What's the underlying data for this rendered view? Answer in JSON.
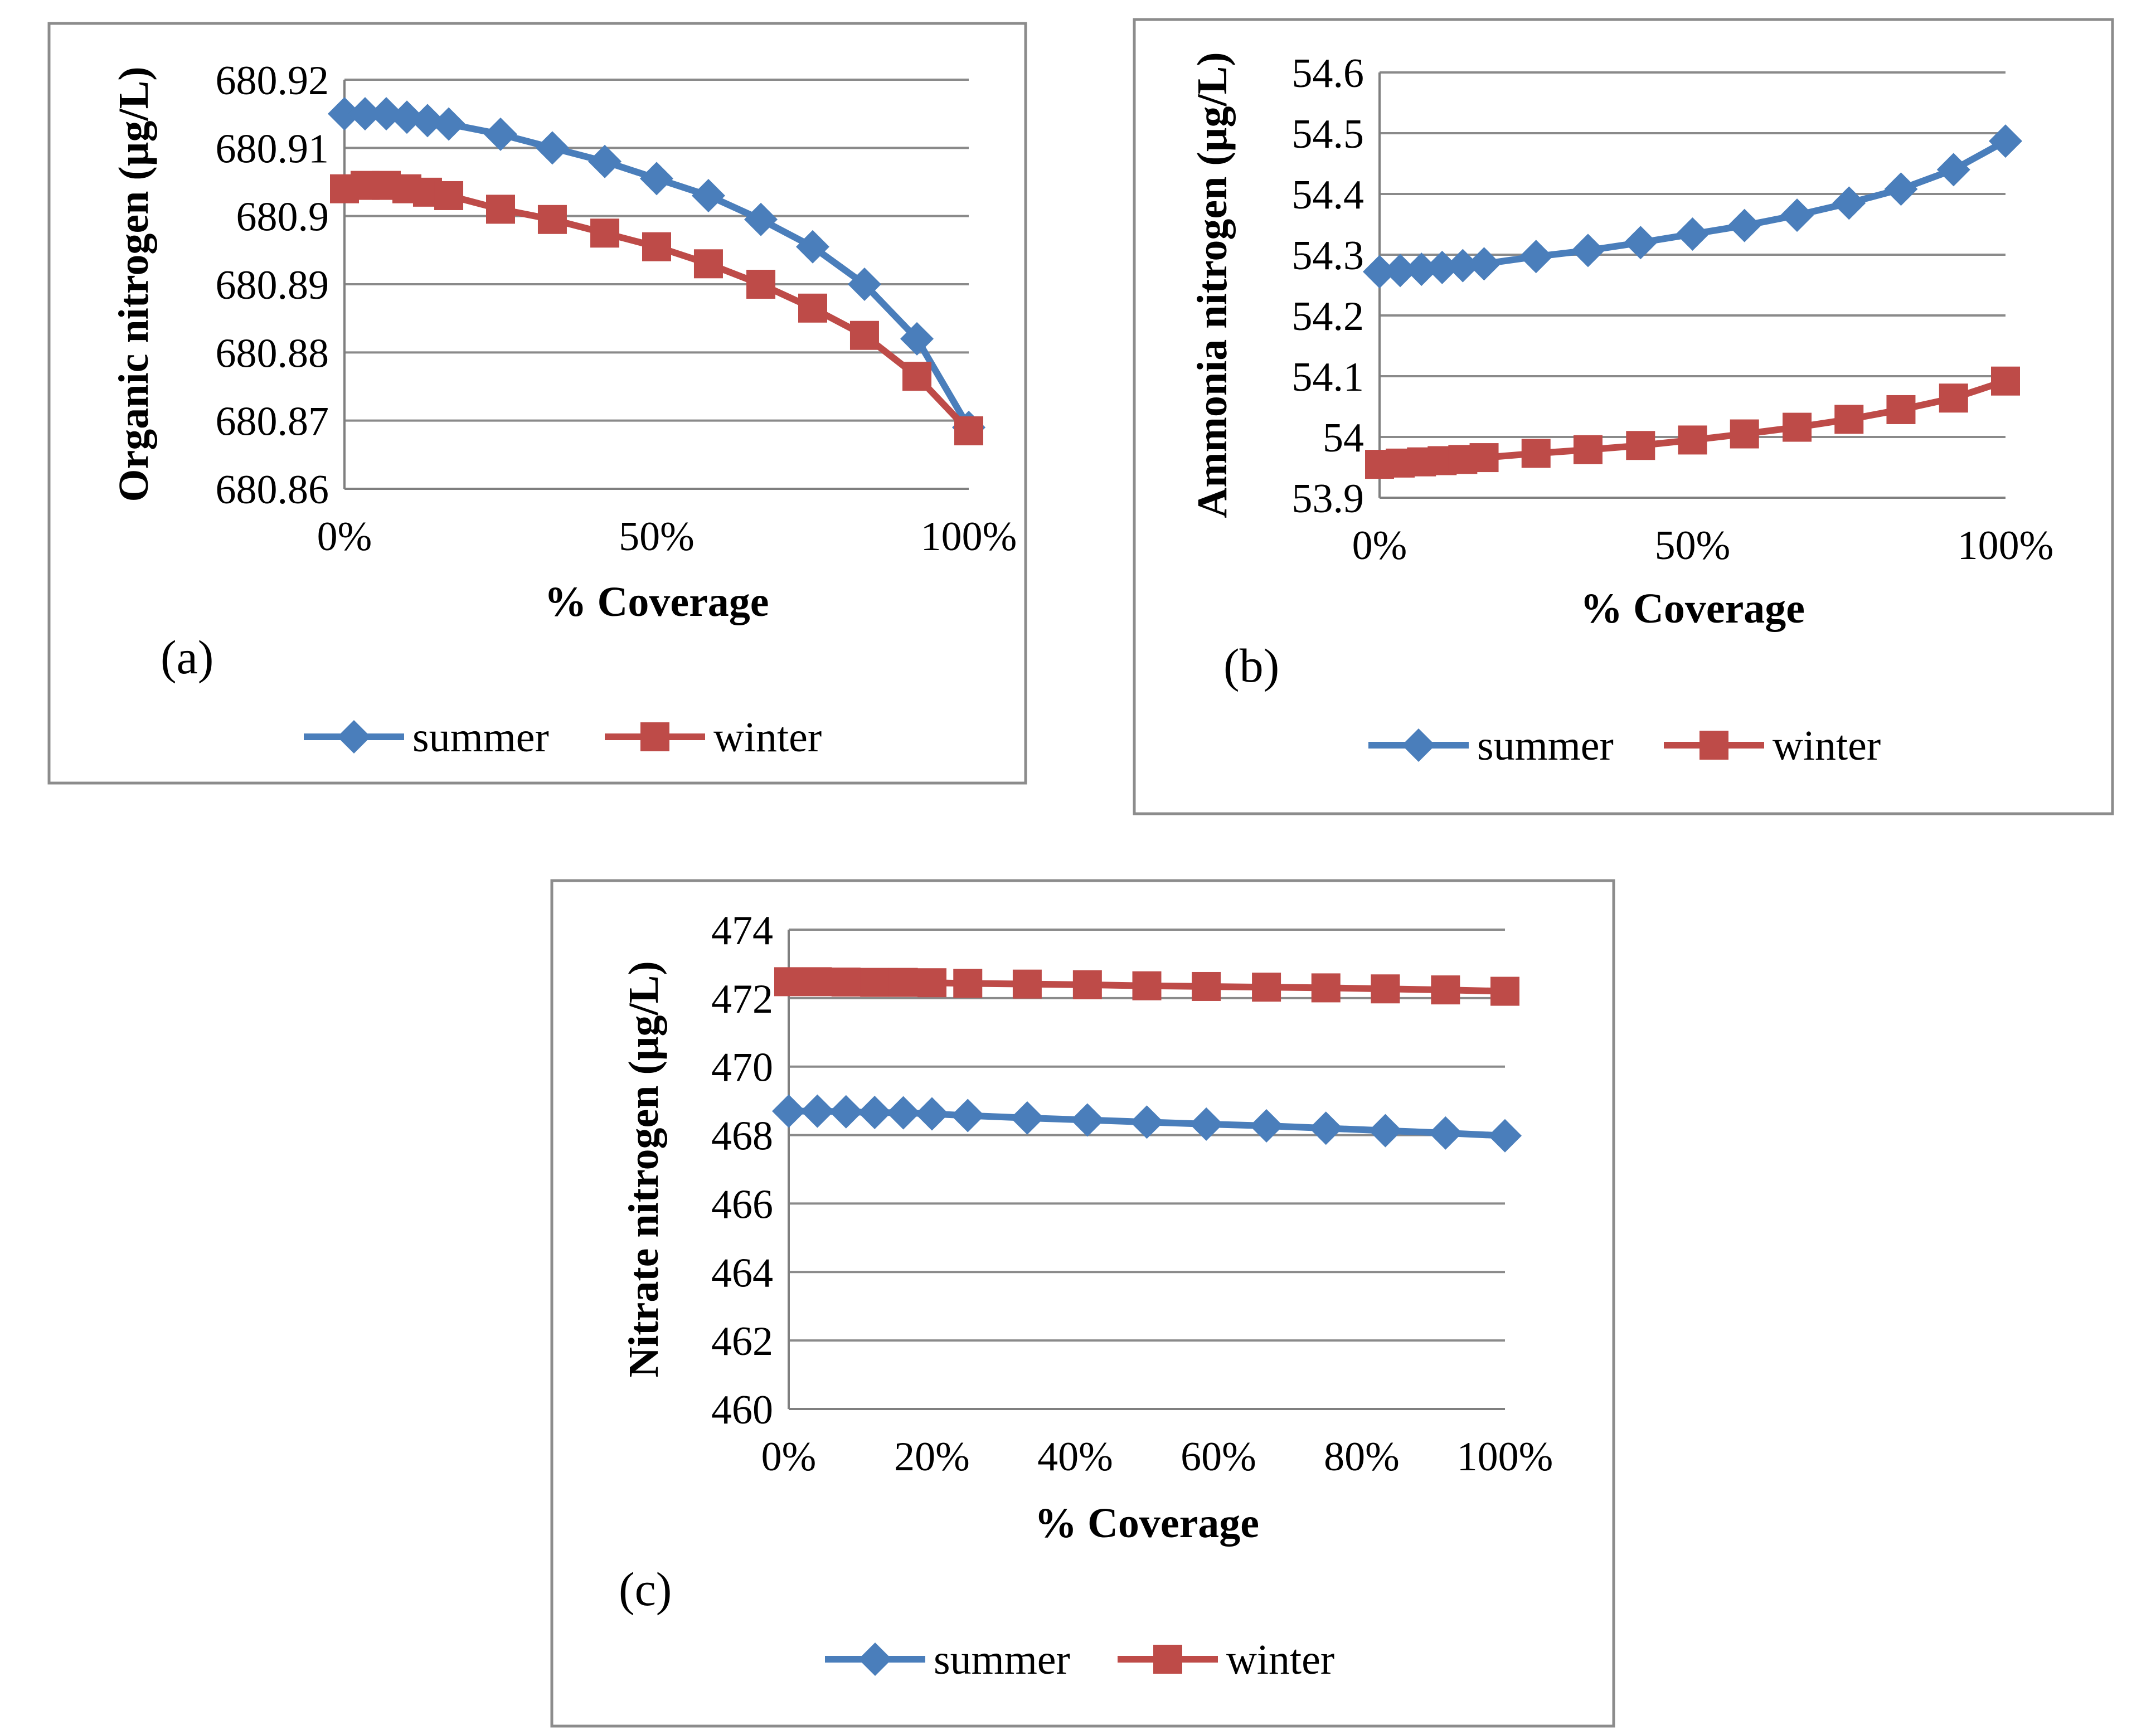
{
  "colors": {
    "summer": "#4a7ebb",
    "winter": "#be4b48"
  },
  "markers": {
    "summer": "diamond",
    "winter": "square"
  },
  "chart_data": [
    {
      "id": "a",
      "type": "line",
      "panel_label": "(a)",
      "xlabel": "% Coverage",
      "ylabel": "Organic nitrogen  (µg/L)",
      "xlim": [
        0,
        100
      ],
      "ylim": [
        680.86,
        680.92
      ],
      "x_ticks": [
        "0%",
        "50%",
        "100%"
      ],
      "y_ticks": [
        "680.86",
        "680.87",
        "680.88",
        "680.89",
        "680.9",
        "680.91",
        "680.92"
      ],
      "grid": true,
      "legend_position": "bottom",
      "x": [
        0,
        3.3,
        6.7,
        10,
        13.3,
        16.7,
        25,
        33.3,
        41.7,
        50,
        58.3,
        66.7,
        75,
        83.3,
        91.7,
        100
      ],
      "series": [
        {
          "name": "summer",
          "values": [
            680.915,
            680.915,
            680.915,
            680.9145,
            680.914,
            680.9135,
            680.912,
            680.91,
            680.908,
            680.9055,
            680.903,
            680.8995,
            680.8955,
            680.89,
            680.882,
            680.869
          ]
        },
        {
          "name": "winter",
          "values": [
            680.904,
            680.9045,
            680.9045,
            680.904,
            680.9035,
            680.903,
            680.901,
            680.8995,
            680.8975,
            680.8955,
            680.893,
            680.89,
            680.8865,
            680.8825,
            680.8765,
            680.8685
          ]
        }
      ]
    },
    {
      "id": "b",
      "type": "line",
      "panel_label": "(b)",
      "xlabel": "% Coverage",
      "ylabel": "Ammonia nitrogen  (µg/L)",
      "xlim": [
        0,
        100
      ],
      "ylim": [
        53.9,
        54.6
      ],
      "x_ticks": [
        "0%",
        "50%",
        "100%"
      ],
      "y_ticks": [
        "53.9",
        "54",
        "54.1",
        "54.2",
        "54.3",
        "54.4",
        "54.5",
        "54.6"
      ],
      "grid": true,
      "legend_position": "bottom",
      "x": [
        0,
        3.3,
        6.7,
        10,
        13.3,
        16.7,
        25,
        33.3,
        41.7,
        50,
        58.3,
        66.7,
        75,
        83.3,
        91.7,
        100
      ],
      "series": [
        {
          "name": "summer",
          "values": [
            54.272,
            54.274,
            54.276,
            54.279,
            54.282,
            54.285,
            54.297,
            54.307,
            54.32,
            54.334,
            54.348,
            54.365,
            54.385,
            54.408,
            54.44,
            54.487
          ]
        },
        {
          "name": "winter",
          "values": [
            53.955,
            53.957,
            53.959,
            53.961,
            53.963,
            53.966,
            53.973,
            53.979,
            53.986,
            53.995,
            54.005,
            54.016,
            54.029,
            54.045,
            54.064,
            54.092
          ]
        }
      ]
    },
    {
      "id": "c",
      "type": "line",
      "panel_label": "(c)",
      "xlabel": "% Coverage",
      "ylabel": "Nitrate nitrogen  (µg/L)",
      "xlim": [
        0,
        100
      ],
      "ylim": [
        460,
        474
      ],
      "x_ticks": [
        "0%",
        "20%",
        "40%",
        "60%",
        "80%",
        "100%"
      ],
      "y_ticks": [
        "460",
        "462",
        "464",
        "466",
        "468",
        "470",
        "472",
        "474"
      ],
      "grid": true,
      "legend_position": "bottom",
      "x": [
        0,
        4,
        8,
        12,
        16,
        20,
        25,
        33.3,
        41.7,
        50,
        58.3,
        66.7,
        75,
        83.3,
        91.7,
        100
      ],
      "series": [
        {
          "name": "summer",
          "values": [
            468.7,
            468.7,
            468.68,
            468.66,
            468.65,
            468.62,
            468.57,
            468.5,
            468.44,
            468.38,
            468.32,
            468.27,
            468.2,
            468.13,
            468.06,
            467.98
          ]
        },
        {
          "name": "winter",
          "values": [
            472.48,
            472.48,
            472.47,
            472.46,
            472.46,
            472.45,
            472.43,
            472.41,
            472.39,
            472.36,
            472.34,
            472.32,
            472.3,
            472.27,
            472.24,
            472.2
          ]
        }
      ]
    }
  ]
}
